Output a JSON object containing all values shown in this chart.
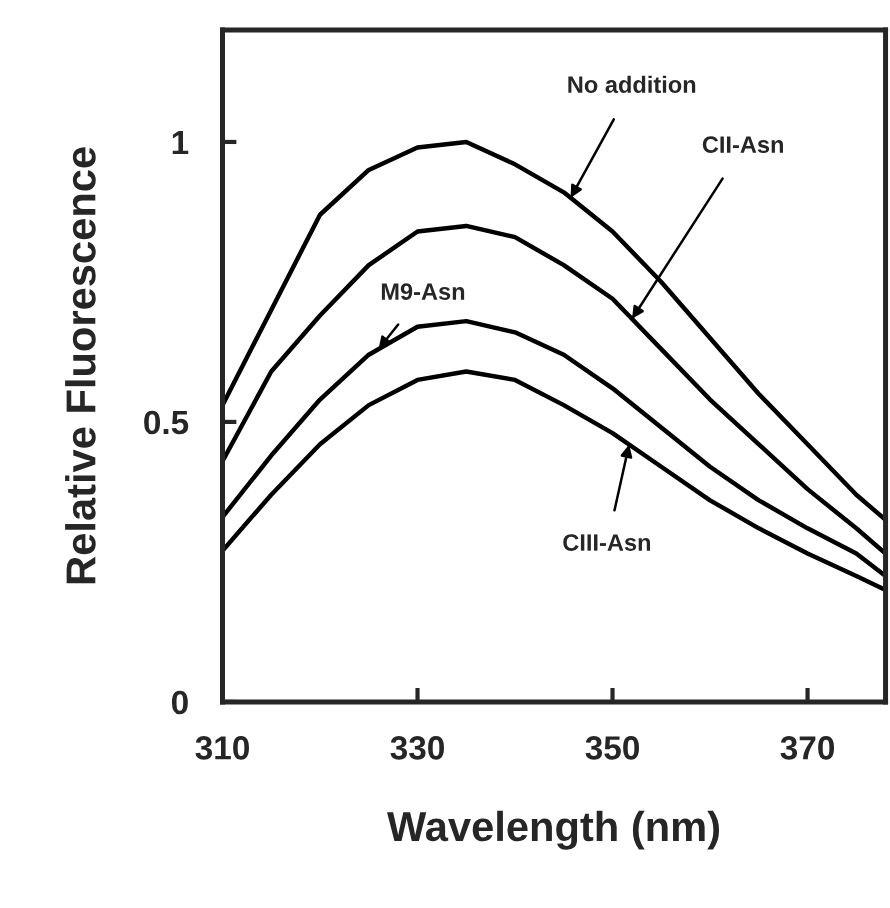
{
  "chart_data": {
    "type": "line",
    "xlabel": "Wavelength (nm)",
    "ylabel": "Relative Fluorescence",
    "x": [
      310,
      315,
      320,
      325,
      330,
      335,
      340,
      345,
      350,
      355,
      360,
      365,
      370,
      375,
      378
    ],
    "series": [
      {
        "name": "No addition",
        "color": "#000000",
        "values": [
          0.53,
          0.7,
          0.87,
          0.95,
          0.99,
          1.0,
          0.96,
          0.91,
          0.84,
          0.75,
          0.65,
          0.55,
          0.46,
          0.37,
          0.325
        ]
      },
      {
        "name": "CII-Asn",
        "color": "#000000",
        "values": [
          0.43,
          0.59,
          0.69,
          0.78,
          0.84,
          0.85,
          0.83,
          0.78,
          0.72,
          0.63,
          0.54,
          0.46,
          0.38,
          0.31,
          0.265
        ]
      },
      {
        "name": "M9-Asn",
        "color": "#000000",
        "values": [
          0.33,
          0.44,
          0.54,
          0.62,
          0.67,
          0.68,
          0.66,
          0.62,
          0.56,
          0.49,
          0.42,
          0.36,
          0.31,
          0.265,
          0.225
        ]
      },
      {
        "name": "CIII-Asn",
        "color": "#000000",
        "values": [
          0.27,
          0.37,
          0.46,
          0.53,
          0.575,
          0.59,
          0.575,
          0.53,
          0.48,
          0.42,
          0.36,
          0.31,
          0.265,
          0.225,
          0.2
        ]
      }
    ],
    "xlim": [
      310,
      378
    ],
    "xticks": [
      310,
      330,
      350,
      370
    ],
    "ylim": [
      0,
      1.2
    ],
    "yticks": [
      0,
      0.5,
      1
    ],
    "grid": false,
    "legend": false,
    "marker": "none",
    "line_style": "solid"
  }
}
